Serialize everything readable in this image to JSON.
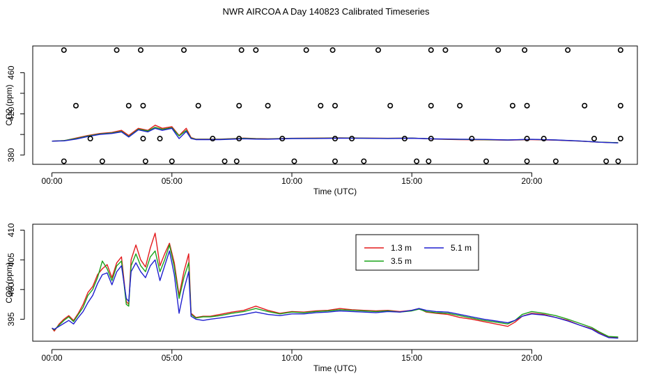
{
  "title": "NWR AIRCOA A  Day 140823  Calibrated Timeseries",
  "colors": {
    "s13": "#e31a1c",
    "s35": "#1aa31a",
    "s51": "#1f1fcf",
    "axis": "#000000"
  },
  "chart_data": [
    {
      "type": "line+scatter",
      "xlabel": "Time (UTC)",
      "ylabel": "CO2 (ppm)",
      "xlim": [
        -0.8,
        24.4
      ],
      "ylim": [
        371,
        486
      ],
      "xticks": [
        0,
        5,
        10,
        15,
        20
      ],
      "xtick_labels": [
        "00:00",
        "05:00",
        "10:00",
        "15:00",
        "20:00"
      ],
      "yticks": [
        380,
        400,
        420,
        440,
        460
      ],
      "ytick_labels": [
        "380",
        "",
        "420",
        "",
        "460"
      ],
      "series": [
        {
          "name": "1.3 m",
          "color_key": "s13",
          "x": [
            0,
            0.5,
            1.0,
            1.5,
            2.0,
            2.5,
            2.9,
            3.2,
            3.6,
            4.0,
            4.3,
            4.6,
            5.0,
            5.3,
            5.6,
            5.8,
            6.0,
            6.3,
            7.0,
            8.0,
            8.5,
            9.0,
            10.0,
            11.0,
            12.0,
            13.0,
            14.0,
            15.0,
            16.0,
            17.0,
            18.0,
            19.0,
            20.0,
            21.0,
            22.0,
            22.8,
            23.6
          ],
          "y": [
            393.5,
            394,
            396.5,
            399,
            401,
            402,
            404,
            399,
            406,
            404,
            409,
            406,
            407.5,
            399,
            406,
            397,
            395.5,
            395.5,
            395.5,
            396.5,
            396,
            395.8,
            396.3,
            396.5,
            396.8,
            396.5,
            396.3,
            396.5,
            395.5,
            395,
            394.8,
            394.5,
            395,
            394.5,
            393.5,
            392.5,
            392
          ]
        },
        {
          "name": "3.5 m",
          "color_key": "s35",
          "x": [
            0,
            0.5,
            1.0,
            1.5,
            2.0,
            2.5,
            2.9,
            3.2,
            3.6,
            4.0,
            4.3,
            4.6,
            5.0,
            5.3,
            5.6,
            5.8,
            6.0,
            6.3,
            7.0,
            8.0,
            8.5,
            9.0,
            10.0,
            11.0,
            12.0,
            13.0,
            14.0,
            15.0,
            16.0,
            17.0,
            18.0,
            19.0,
            20.0,
            21.0,
            22.0,
            22.8,
            23.6
          ],
          "y": [
            393.5,
            394,
            396,
            398.5,
            400.5,
            401.5,
            403,
            398,
            405,
            403.5,
            407,
            405,
            406.5,
            398.5,
            404,
            396.5,
            395.3,
            395.3,
            395.3,
            396.2,
            395.8,
            395.6,
            396.2,
            396.3,
            396.6,
            396.4,
            396.2,
            396.5,
            395.6,
            395.2,
            395,
            394.6,
            395.2,
            394.6,
            393.6,
            392.6,
            392
          ]
        },
        {
          "name": "5.1 m",
          "color_key": "s51",
          "x": [
            0,
            0.5,
            1.0,
            1.5,
            2.0,
            2.5,
            2.9,
            3.2,
            3.6,
            4.0,
            4.3,
            4.6,
            5.0,
            5.3,
            5.6,
            5.8,
            6.0,
            6.3,
            7.0,
            8.0,
            8.5,
            9.0,
            10.0,
            11.0,
            12.0,
            13.0,
            14.0,
            15.0,
            16.0,
            17.0,
            18.0,
            19.0,
            20.0,
            21.0,
            22.0,
            22.8,
            23.6
          ],
          "y": [
            393.5,
            393.8,
            395.5,
            398,
            400,
            401,
            402.5,
            397.5,
            404.5,
            402.5,
            406,
            404,
            406,
            396,
            403,
            396,
            395,
            395,
            395,
            395.8,
            395.5,
            395.4,
            396,
            396.1,
            396.4,
            396.3,
            396.1,
            396.4,
            395.7,
            395.4,
            395.2,
            394.7,
            395.3,
            394.7,
            393.7,
            392.5,
            391.8
          ]
        }
      ],
      "points_x": [
        0.5,
        2.1,
        3.9,
        5.0,
        7.2,
        7.7,
        10.1,
        11.8,
        13.0,
        15.2,
        15.7,
        18.1,
        19.8,
        21.0,
        23.1,
        23.6,
        1.6,
        3.8,
        4.5,
        6.7,
        7.8,
        9.6,
        11.8,
        12.5,
        14.7,
        15.8,
        17.5,
        19.8,
        20.5,
        22.6,
        23.7,
        1.0,
        3.2,
        3.8,
        6.1,
        7.8,
        9.0,
        11.2,
        11.8,
        14.1,
        15.8,
        17.0,
        19.2,
        19.8,
        22.2,
        23.7,
        0.5,
        2.7,
        3.7,
        5.5,
        7.9,
        8.5,
        10.6,
        11.7,
        13.6,
        15.8,
        16.4,
        18.6,
        19.7,
        21.5,
        23.7
      ],
      "points_y": [
        374,
        374,
        374,
        374,
        374,
        374,
        374,
        374,
        374,
        374,
        374,
        374,
        374,
        374,
        374,
        374,
        396,
        396,
        396,
        396,
        396,
        396,
        396,
        396,
        396,
        396,
        396,
        396,
        396,
        396,
        396,
        428,
        428,
        428,
        428,
        428,
        428,
        428,
        428,
        428,
        428,
        428,
        428,
        428,
        428,
        428,
        482,
        482,
        482,
        482,
        482,
        482,
        482,
        482,
        482,
        482,
        482,
        482,
        482,
        482,
        482
      ]
    },
    {
      "type": "line",
      "xlabel": "Time (UTC)",
      "ylabel": "CO2 (ppm)",
      "xlim": [
        -0.8,
        24.4
      ],
      "ylim": [
        391.3,
        411
      ],
      "xticks": [
        0,
        5,
        10,
        15,
        20
      ],
      "xtick_labels": [
        "00:00",
        "05:00",
        "10:00",
        "15:00",
        "20:00"
      ],
      "yticks": [
        395,
        400,
        405,
        410
      ],
      "ytick_labels": [
        "395",
        "400",
        "405",
        "410"
      ],
      "legend": "top-center",
      "series": [
        {
          "name": "1.3 m",
          "color_key": "s13",
          "x": [
            0,
            0.1,
            0.3,
            0.5,
            0.7,
            0.9,
            1.1,
            1.3,
            1.5,
            1.7,
            1.9,
            2.1,
            2.3,
            2.5,
            2.7,
            2.9,
            3.1,
            3.2,
            3.3,
            3.5,
            3.7,
            3.9,
            4.1,
            4.3,
            4.5,
            4.7,
            4.9,
            5.1,
            5.3,
            5.5,
            5.7,
            5.8,
            6.0,
            6.3,
            6.6,
            7.0,
            7.5,
            8.0,
            8.5,
            9.0,
            9.5,
            10.0,
            10.5,
            11.0,
            11.5,
            12.0,
            12.5,
            13.0,
            13.5,
            14.0,
            14.5,
            15.0,
            15.3,
            15.6,
            16.0,
            16.5,
            17.0,
            17.5,
            18.0,
            18.5,
            19.0,
            19.3,
            19.6,
            20.0,
            20.5,
            21.0,
            21.5,
            22.0,
            22.5,
            22.8,
            23.2,
            23.6
          ],
          "y": [
            393.5,
            393,
            394.2,
            395,
            395.6,
            394.8,
            396,
            397.5,
            399.5,
            400.5,
            402.5,
            403.5,
            404.2,
            402,
            404.5,
            405.5,
            398,
            397.5,
            405,
            407.5,
            405,
            403.8,
            407,
            409.5,
            404,
            406,
            407.8,
            404.5,
            399,
            403,
            406,
            396,
            395.3,
            395.5,
            395.5,
            395.8,
            396.2,
            396.5,
            397.2,
            396.5,
            396,
            396.3,
            396.2,
            396.4,
            396.5,
            396.8,
            396.6,
            396.5,
            396.4,
            396.5,
            396.3,
            396.5,
            396.8,
            396.2,
            396,
            395.8,
            395.3,
            395,
            394.6,
            394.2,
            393.8,
            394.5,
            395.5,
            396,
            395.8,
            395.3,
            394.8,
            394,
            393.4,
            392.8,
            392,
            391.9
          ]
        },
        {
          "name": "3.5 m",
          "color_key": "s35",
          "x": [
            0,
            0.1,
            0.3,
            0.5,
            0.7,
            0.9,
            1.1,
            1.3,
            1.5,
            1.7,
            1.9,
            2.1,
            2.3,
            2.5,
            2.7,
            2.9,
            3.1,
            3.2,
            3.3,
            3.5,
            3.7,
            3.9,
            4.1,
            4.3,
            4.5,
            4.7,
            4.9,
            5.1,
            5.3,
            5.5,
            5.7,
            5.8,
            6.0,
            6.3,
            6.6,
            7.0,
            7.5,
            8.0,
            8.5,
            9.0,
            9.5,
            10.0,
            10.5,
            11.0,
            11.5,
            12.0,
            12.5,
            13.0,
            13.5,
            14.0,
            14.5,
            15.0,
            15.3,
            15.6,
            16.0,
            16.5,
            17.0,
            17.5,
            18.0,
            18.5,
            19.0,
            19.3,
            19.6,
            20.0,
            20.5,
            21.0,
            21.5,
            22.0,
            22.5,
            22.8,
            23.2,
            23.6
          ],
          "y": [
            393.5,
            393.2,
            394,
            394.8,
            395.4,
            394.6,
            395.8,
            397,
            399,
            400,
            402,
            404.8,
            403.5,
            401.5,
            404,
            404.8,
            397.5,
            397.2,
            404,
            406,
            404,
            403,
            405.5,
            406.5,
            403,
            405,
            407.5,
            403.8,
            398.5,
            402,
            404.5,
            395.8,
            395.2,
            395.4,
            395.4,
            395.6,
            396,
            396.3,
            396.8,
            396.3,
            395.9,
            396.2,
            396.1,
            396.3,
            396.4,
            396.6,
            396.5,
            396.4,
            396.3,
            396.4,
            396.2,
            396.4,
            396.7,
            396.3,
            396.1,
            396,
            395.6,
            395.2,
            394.8,
            394.5,
            394.2,
            394.8,
            395.8,
            396.3,
            396,
            395.6,
            395,
            394.3,
            393.6,
            392.9,
            392.1,
            392
          ]
        },
        {
          "name": "5.1 m",
          "color_key": "s51",
          "x": [
            0,
            0.1,
            0.3,
            0.5,
            0.7,
            0.9,
            1.1,
            1.3,
            1.5,
            1.7,
            1.9,
            2.1,
            2.3,
            2.5,
            2.7,
            2.9,
            3.1,
            3.2,
            3.3,
            3.5,
            3.7,
            3.9,
            4.1,
            4.3,
            4.5,
            4.7,
            4.9,
            5.1,
            5.3,
            5.5,
            5.7,
            5.8,
            6.0,
            6.3,
            6.6,
            7.0,
            7.5,
            8.0,
            8.5,
            9.0,
            9.5,
            10.0,
            10.5,
            11.0,
            11.5,
            12.0,
            12.5,
            13.0,
            13.5,
            14.0,
            14.5,
            15.0,
            15.3,
            15.6,
            16.0,
            16.5,
            17.0,
            17.5,
            18.0,
            18.5,
            19.0,
            19.3,
            19.6,
            20.0,
            20.5,
            21.0,
            21.5,
            22.0,
            22.5,
            22.8,
            23.2,
            23.6
          ],
          "y": [
            393.5,
            393.3,
            393.8,
            394.3,
            394.8,
            394.2,
            395.3,
            396.3,
            397.8,
            399,
            401,
            402.5,
            402.8,
            400.8,
            403,
            404,
            398.5,
            398,
            403,
            404.5,
            403,
            402,
            404,
            405,
            401.5,
            404,
            406.5,
            402.5,
            396,
            400,
            403,
            395.5,
            395,
            394.8,
            395,
            395.2,
            395.5,
            395.8,
            396.2,
            395.8,
            395.6,
            395.9,
            395.9,
            396.1,
            396.2,
            396.4,
            396.3,
            396.2,
            396.1,
            396.3,
            396.2,
            396.5,
            396.8,
            396.5,
            396.3,
            396.2,
            395.8,
            395.4,
            395,
            394.7,
            394.4,
            394.8,
            395.5,
            395.9,
            395.7,
            395.3,
            394.7,
            394,
            393.3,
            392.6,
            391.9,
            391.8
          ]
        }
      ]
    }
  ]
}
